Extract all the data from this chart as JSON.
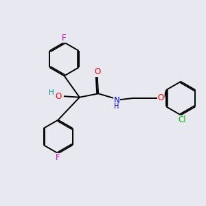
{
  "bg_color": "#e8e8f0",
  "bond_color": "#000000",
  "atom_colors": {
    "F": "#cc00cc",
    "O": "#ff0000",
    "N": "#0000ff",
    "Cl": "#00bb00",
    "H": "#008888",
    "C": "#000000"
  },
  "font_size": 8.5,
  "line_width": 1.4
}
